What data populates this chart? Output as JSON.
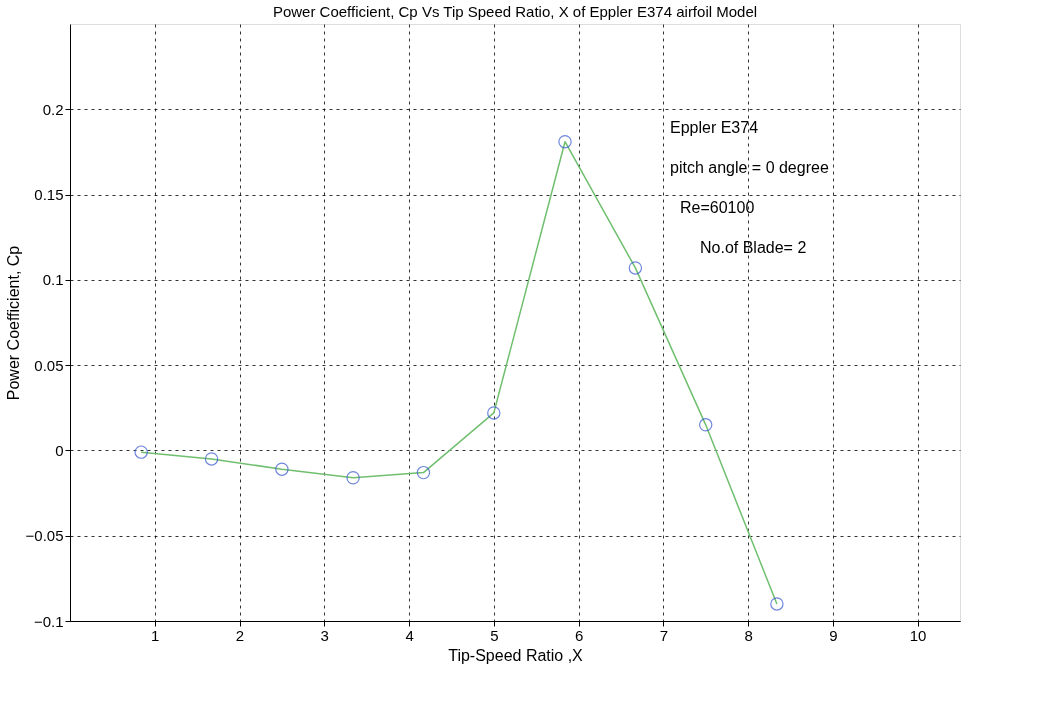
{
  "chart_data": {
    "type": "line",
    "title": "Power Coefficient, Cp Vs Tip Speed Ratio, X of Eppler E374 airfoil Model",
    "xlabel": "Tip-Speed Ratio ,X",
    "ylabel": "Power Coefficient, Cp",
    "x": [
      0.84,
      1.67,
      2.5,
      3.34,
      4.17,
      5.0,
      5.84,
      6.67,
      7.5,
      8.34
    ],
    "series": [
      {
        "color": "#6fbf6f",
        "values": [
          -0.001,
          -0.005,
          -0.011,
          -0.016,
          -0.013,
          0.022,
          0.181,
          0.107,
          0.015,
          -0.09
        ]
      }
    ],
    "xlim": [
      0,
      10.5
    ],
    "ylim": [
      -0.1,
      0.25
    ],
    "xticks": [
      1,
      2,
      3,
      4,
      5,
      6,
      7,
      8,
      9,
      10
    ],
    "yticks": [
      -0.1,
      -0.05,
      0,
      0.05,
      0.1,
      0.15,
      0.2
    ],
    "grid": true,
    "marker": "circle",
    "line_style": "solid",
    "annotations": [
      "Eppler E374",
      "pitch angle = 0 degree",
      "Re=60100",
      "No.of Blade= 2"
    ]
  }
}
